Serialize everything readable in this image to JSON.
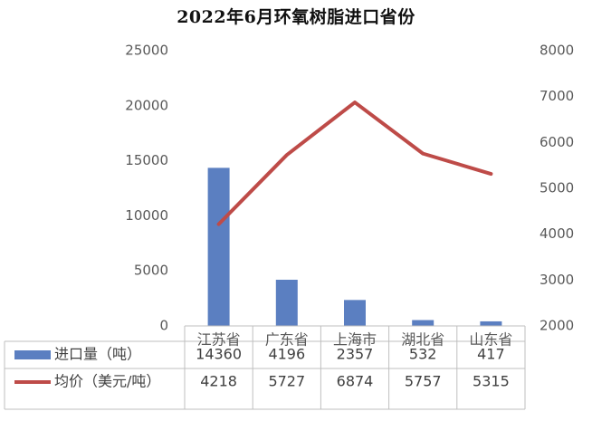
{
  "chart_data": {
    "type": "bar",
    "title": "2022年6月环氧树脂进口省份",
    "categories": [
      "江苏省",
      "广东省",
      "上海市",
      "湖北省",
      "山东省"
    ],
    "series": [
      {
        "name": "进口量（吨）",
        "type": "bar",
        "axis": "left",
        "color": "#5B7FC1",
        "values": [
          14360,
          4196,
          2357,
          532,
          417
        ]
      },
      {
        "name": "均价（美元/吨）",
        "type": "line",
        "axis": "right",
        "color": "#BE4B48",
        "values": [
          4218,
          5727,
          6874,
          5757,
          5315
        ]
      }
    ],
    "y_left": {
      "ylim": [
        0,
        25000
      ],
      "ticks": [
        0,
        5000,
        10000,
        15000,
        20000,
        25000
      ]
    },
    "y_right": {
      "ylim": [
        2000,
        8000
      ],
      "ticks": [
        2000,
        3000,
        4000,
        5000,
        6000,
        7000,
        8000
      ]
    },
    "grid": false,
    "legend": "data-table-below"
  }
}
